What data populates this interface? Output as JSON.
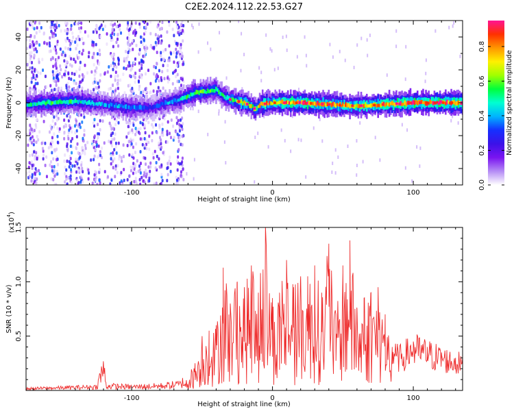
{
  "title": "C2E2.2024.112.22.53.G27",
  "colors": {
    "snr_line": "#ee2b2b",
    "background": "#ffffff",
    "axis": "#000000"
  },
  "chart_data": [
    {
      "type": "heatmap",
      "xlabel": "Height of straight line (km)",
      "ylabel": "Frequency (Hz)",
      "xlim": [
        -175,
        135
      ],
      "ylim": [
        -50,
        50
      ],
      "xticks": [
        -100,
        0,
        100
      ],
      "xtick_labels": [
        "-100",
        "0",
        "100"
      ],
      "yticks": [
        -40,
        -20,
        0,
        20,
        40
      ],
      "ytick_labels": [
        "-40",
        "-20",
        "0",
        "20",
        "40"
      ],
      "colorbar": {
        "label": "Normalized spectral amplitude",
        "range": [
          0,
          0.95
        ],
        "ticks": [
          0.0,
          0.2,
          0.4,
          0.6,
          0.8
        ],
        "tick_labels": [
          "0.0",
          "0.2",
          "0.4",
          "0.6",
          "0.8"
        ],
        "colormap": [
          "#ffffff",
          "#b58cf5",
          "#7a14f0",
          "#3c12e8",
          "#1530ff",
          "#00b4ff",
          "#00ffd2",
          "#00ff3c",
          "#a0ff00",
          "#fff000",
          "#ff9600",
          "#ff3000",
          "#ff1493"
        ]
      },
      "ridge": {
        "x": [
          -175,
          -160,
          -140,
          -120,
          -100,
          -85,
          -75,
          -65,
          -55,
          -45,
          -40,
          -35,
          -30,
          -20,
          -15,
          -12,
          -8,
          0,
          20,
          40,
          60,
          80,
          100,
          120,
          135
        ],
        "frequency": [
          -1,
          0,
          1,
          -1,
          -3,
          -3,
          0,
          2,
          6,
          7,
          8,
          4,
          2,
          0,
          -2,
          -4,
          -1,
          0,
          0,
          -1,
          -2,
          -1,
          0,
          0,
          0
        ],
        "amplitude": [
          0.45,
          0.55,
          0.5,
          0.4,
          0.4,
          0.3,
          0.4,
          0.45,
          0.6,
          0.55,
          0.5,
          0.5,
          0.55,
          0.75,
          0.7,
          0.6,
          0.75,
          0.8,
          0.85,
          0.8,
          0.75,
          0.85,
          0.9,
          0.9,
          0.85
        ]
      },
      "noise_region_x": [
        -175,
        -63
      ]
    },
    {
      "type": "line",
      "xlabel": "Height of straight line (km)",
      "ylabel": "SNR (10 * v/v)",
      "y_multiplier_label": "(x10",
      "y_multiplier_exp": "4",
      "y_multiplier_close": ")",
      "xlim": [
        -175,
        135
      ],
      "ylim": [
        0,
        1.5
      ],
      "xticks": [
        -100,
        0,
        100
      ],
      "xtick_labels": [
        "-100",
        "0",
        "100"
      ],
      "yticks": [
        0.5,
        1.0,
        1.5
      ],
      "ytick_labels": [
        "0.5",
        "1.0",
        "1.5"
      ],
      "series": [
        {
          "x": [
            -175,
            -150,
            -125,
            -120,
            -118,
            -100,
            -80,
            -65,
            -55,
            -50,
            -45,
            -40,
            -35,
            -30,
            -25,
            -20,
            -15,
            -10,
            -5,
            0,
            5,
            10,
            15,
            20,
            25,
            30,
            35,
            40,
            45,
            50,
            55,
            60,
            65,
            70,
            75,
            80,
            85,
            90,
            100,
            110,
            120,
            130,
            135
          ],
          "values": [
            0.02,
            0.03,
            0.04,
            0.25,
            0.05,
            0.04,
            0.05,
            0.07,
            0.25,
            0.5,
            0.55,
            0.6,
            1.13,
            0.8,
            1.0,
            0.95,
            1.15,
            0.9,
            1.5,
            0.85,
            0.9,
            1.2,
            0.95,
            1.05,
            1.05,
            1.15,
            0.9,
            1.35,
            0.7,
            1.15,
            1.38,
            0.75,
            0.85,
            0.9,
            0.95,
            0.7,
            0.4,
            0.35,
            0.45,
            0.4,
            0.35,
            0.3,
            0.3
          ]
        }
      ]
    }
  ]
}
